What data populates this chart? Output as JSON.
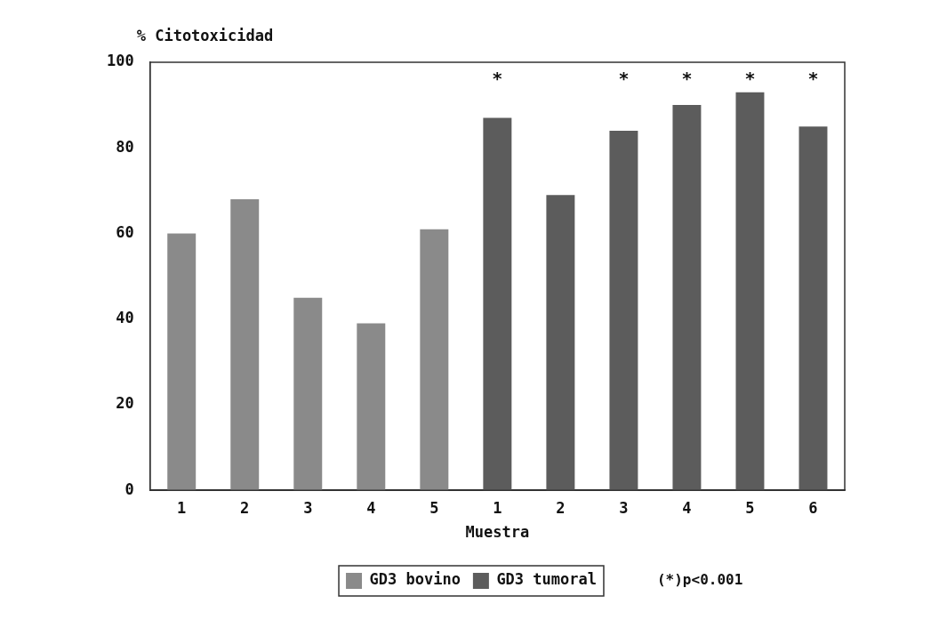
{
  "chart_data": {
    "type": "bar",
    "ylabel": "% Citotoxicidad",
    "xlabel": "Muestra",
    "categories": [
      "1",
      "2",
      "3",
      "4",
      "5",
      "1",
      "2",
      "3",
      "4",
      "5",
      "6"
    ],
    "series": [
      {
        "name": "GD3 bovino",
        "color": "#8a8a8a",
        "values": [
          60,
          68,
          45,
          39,
          61,
          null,
          null,
          null,
          null,
          null,
          null
        ]
      },
      {
        "name": "GD3 tumoral",
        "color": "#5c5c5c",
        "values": [
          null,
          null,
          null,
          null,
          null,
          87,
          69,
          84,
          90,
          93,
          85
        ],
        "value_labels": [
          null,
          null,
          null,
          null,
          null,
          "*",
          null,
          "*",
          "*",
          "*",
          "*"
        ]
      }
    ],
    "ylim": [
      0,
      100
    ],
    "yticks": [
      0,
      20,
      40,
      60,
      80,
      100
    ],
    "grid": false,
    "legend": "bottom",
    "annotations": [
      "(*)p<0.001"
    ]
  }
}
